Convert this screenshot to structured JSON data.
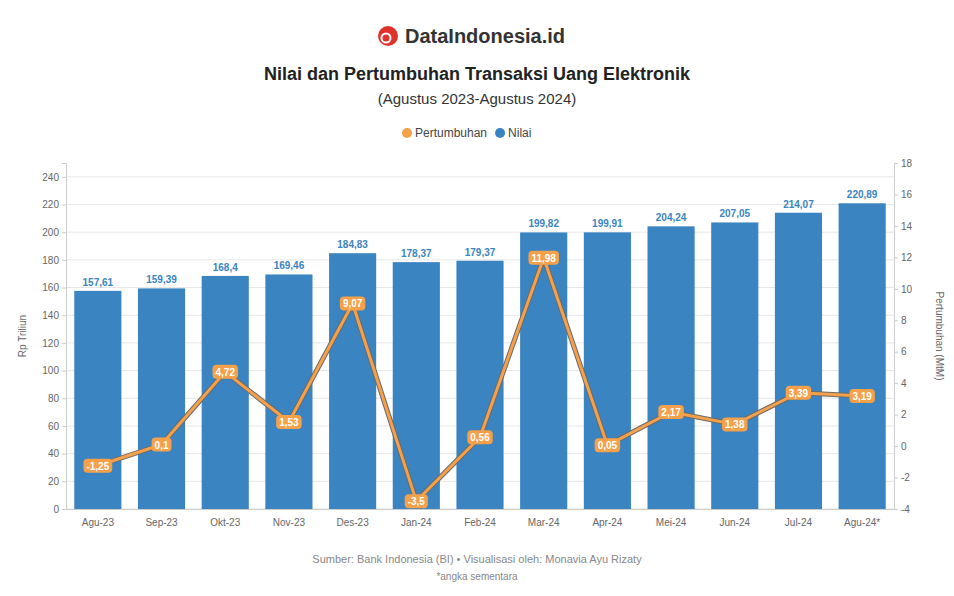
{
  "chart_data": {
    "type": "bar",
    "brand": "DataIndonesia.id",
    "title": "Nilai dan Pertumbuhan Transaksi Uang Elektronik",
    "subtitle": "(Agustus 2023-Agustus 2024)",
    "categories": [
      "Agu-23",
      "Sep-23",
      "Okt-23",
      "Nov-23",
      "Des-23",
      "Jan-24",
      "Feb-24",
      "Mar-24",
      "Apr-24",
      "Mei-24",
      "Jun-24",
      "Jul-24",
      "Agu-24*"
    ],
    "series": [
      {
        "name": "Pertumbuhan",
        "type": "line",
        "axis": "y2",
        "color": "#f5a04a",
        "marker": "circle",
        "values": [
          -1.25,
          0.1,
          4.72,
          1.53,
          9.07,
          -3.5,
          0.56,
          11.98,
          0.05,
          2.17,
          1.38,
          3.39,
          3.19
        ],
        "value_labels": [
          "-1,25",
          "0,1",
          "4,72",
          "1,53",
          "9,07",
          "-3,5",
          "0,56",
          "11,98",
          "0,05",
          "2,17",
          "1,38",
          "3,39",
          "3,19"
        ]
      },
      {
        "name": "Nilai",
        "type": "bar",
        "color": "#3a84c1",
        "values": [
          157.61,
          159.39,
          168.4,
          169.46,
          184.83,
          178.37,
          179.37,
          199.82,
          199.91,
          204.24,
          207.05,
          214.07,
          220.89
        ],
        "value_labels": [
          "157,61",
          "159,39",
          "168,4",
          "169,46",
          "184,83",
          "178,37",
          "179,37",
          "199,82",
          "199,91",
          "204,24",
          "207,05",
          "214,07",
          "220,89"
        ]
      }
    ],
    "ylim": [
      0,
      250
    ],
    "yticks": [
      0,
      20,
      40,
      60,
      80,
      100,
      120,
      140,
      160,
      180,
      200,
      220,
      240
    ],
    "y2lim": [
      -4,
      18
    ],
    "y2ticks": [
      -4,
      -2,
      0,
      2,
      4,
      6,
      8,
      10,
      12,
      14,
      16,
      18
    ],
    "y_label": "Rp Triliun",
    "y2_label": "Pertumbuhan (MtM)",
    "grid": true,
    "legend": "top",
    "data_labels": true,
    "source": "Sumber: Bank Indonesia (BI) • Visualisasi oleh: Monavia Ayu Rizaty",
    "note": "*angka sementara"
  }
}
